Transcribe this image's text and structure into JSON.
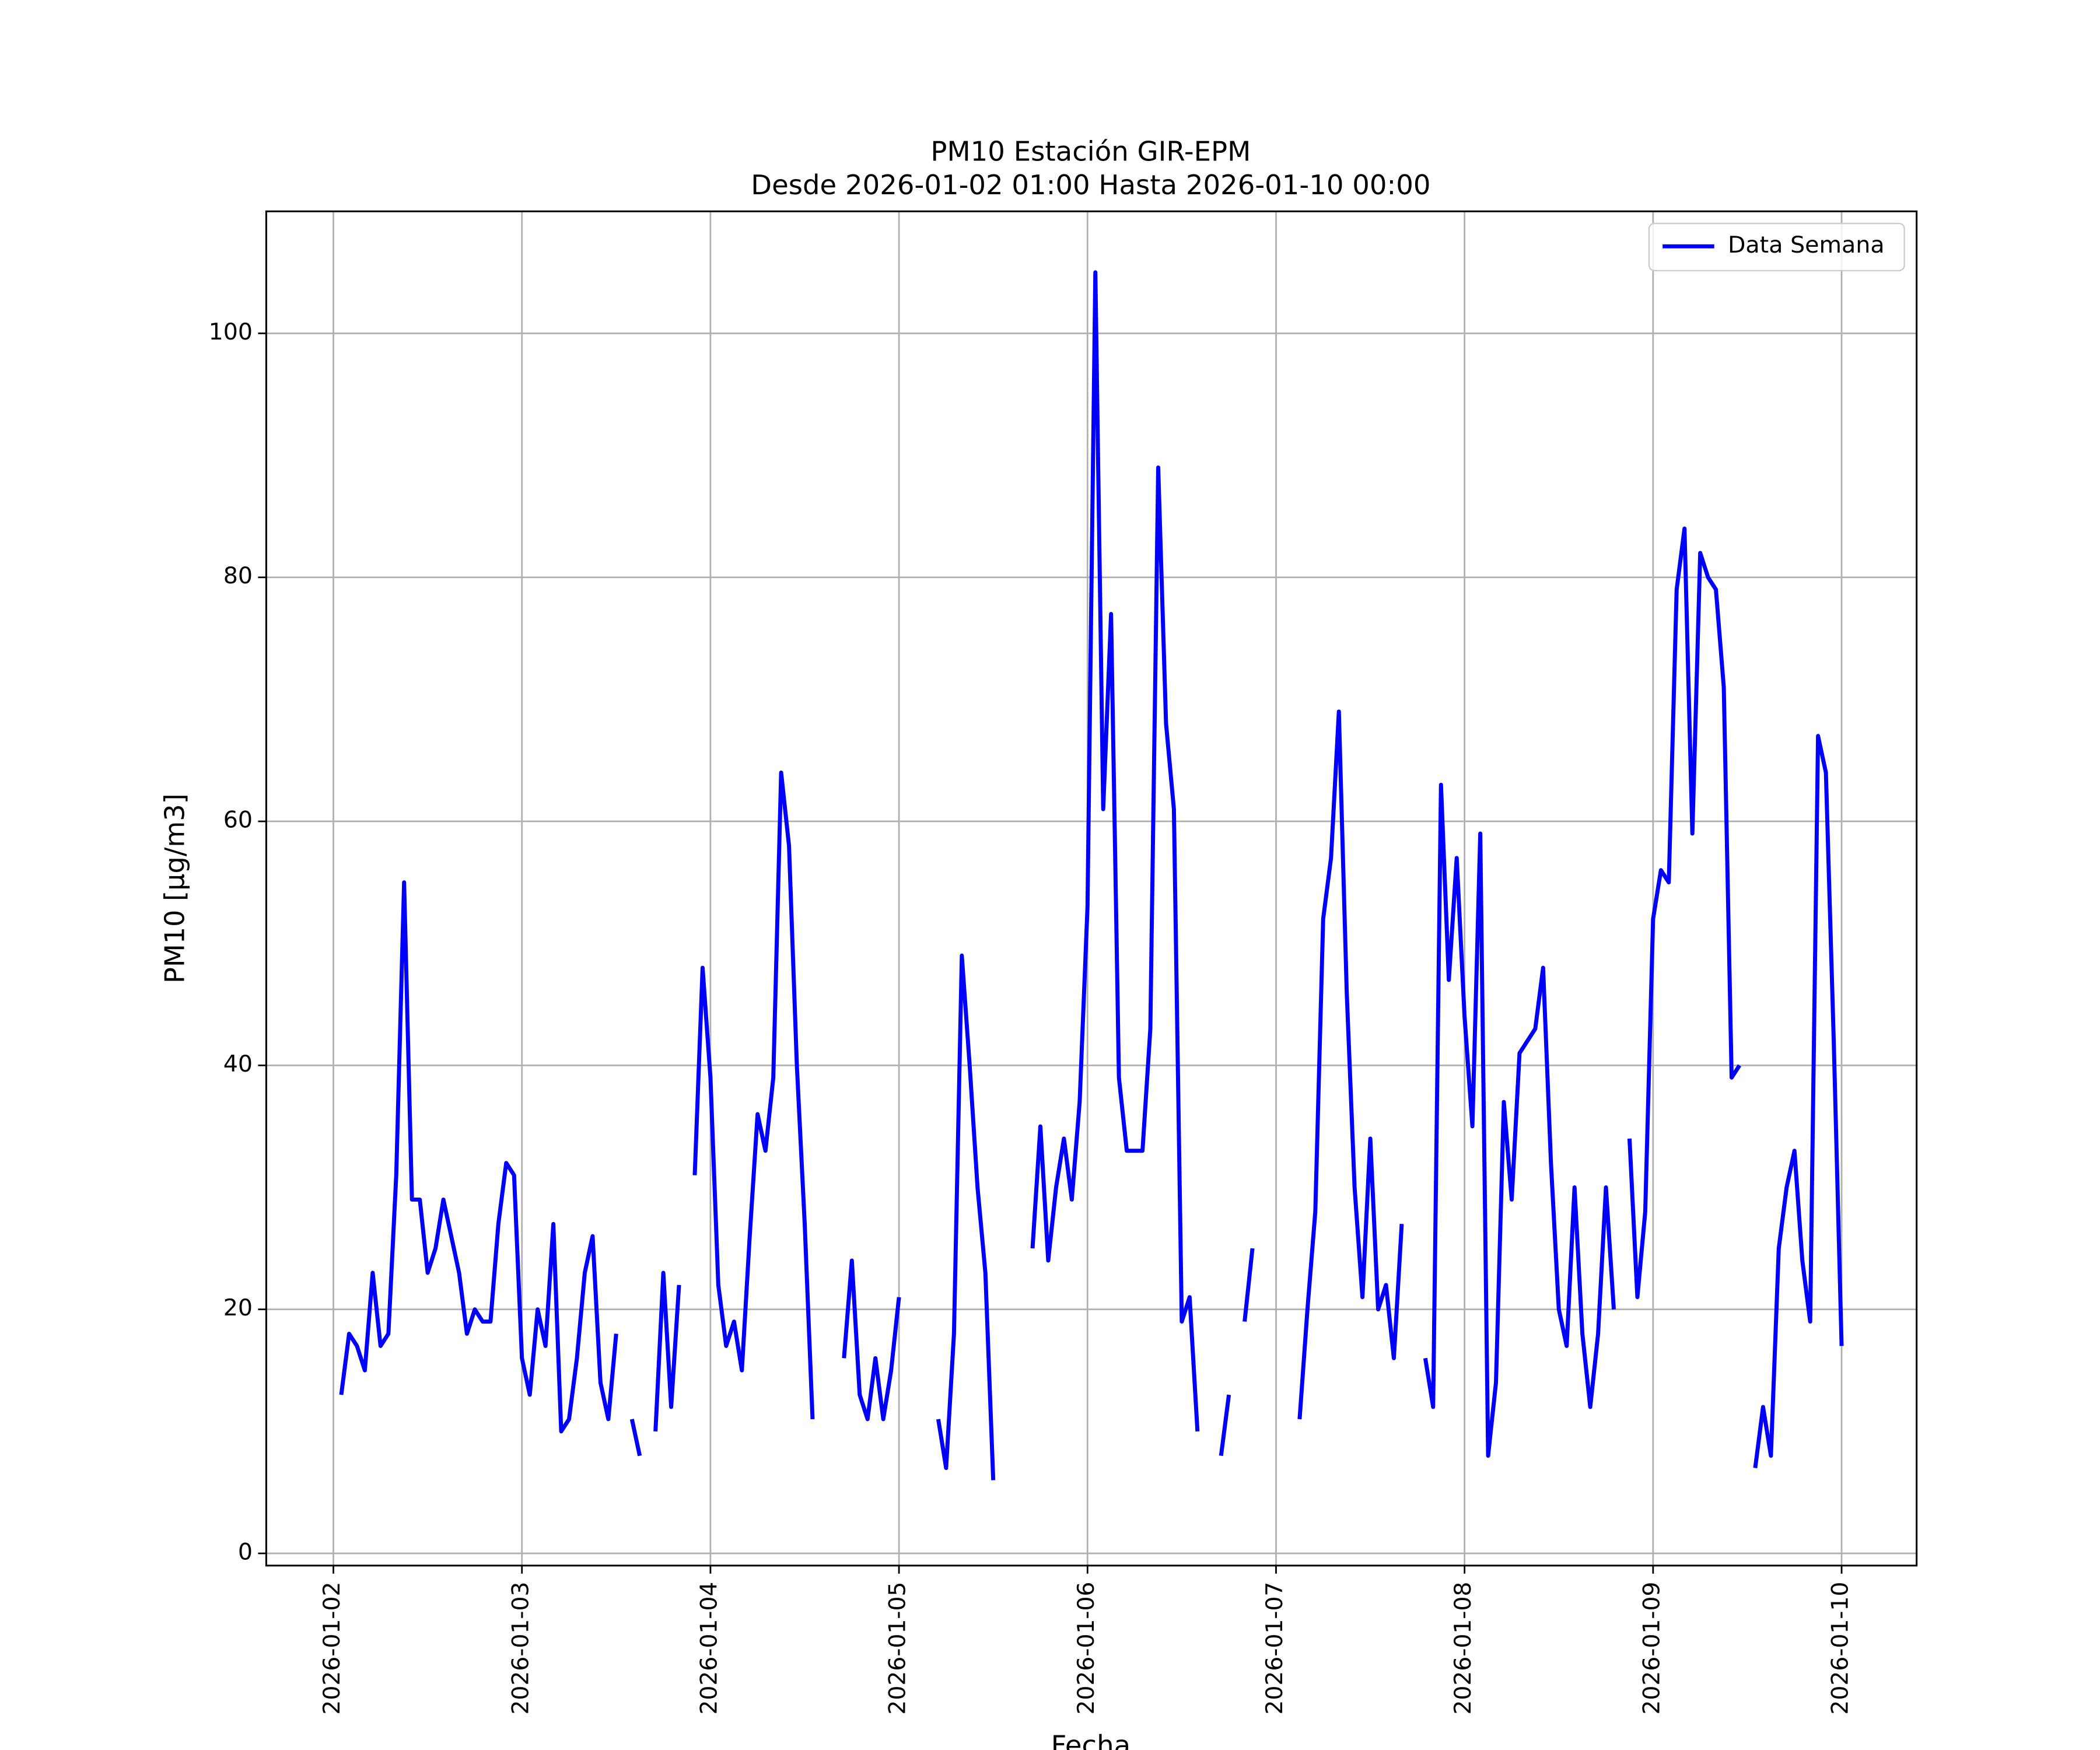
{
  "chart_data": {
    "type": "line",
    "title": "PM10 Estación GIR-EPM",
    "subtitle": "Desde 2026-01-02 01:00 Hasta 2026-01-10 00:00",
    "x_label": "Fecha",
    "y_label": "PM10 [μg/m3]",
    "legend": "upper right",
    "grid": true,
    "x": [
      "2026-01-02 01:00",
      "2026-01-02 02:00",
      "2026-01-02 03:00",
      "2026-01-02 04:00",
      "2026-01-02 05:00",
      "2026-01-02 06:00",
      "2026-01-02 07:00",
      "2026-01-02 08:00",
      "2026-01-02 09:00",
      "2026-01-02 10:00",
      "2026-01-02 11:00",
      "2026-01-02 12:00",
      "2026-01-02 13:00",
      "2026-01-02 14:00",
      "2026-01-02 15:00",
      "2026-01-02 16:00",
      "2026-01-02 17:00",
      "2026-01-02 18:00",
      "2026-01-02 19:00",
      "2026-01-02 20:00",
      "2026-01-02 21:00",
      "2026-01-02 22:00",
      "2026-01-02 23:00",
      "2026-01-03 00:00",
      "2026-01-03 01:00",
      "2026-01-03 02:00",
      "2026-01-03 03:00",
      "2026-01-03 04:00",
      "2026-01-03 05:00",
      "2026-01-03 06:00",
      "2026-01-03 07:00",
      "2026-01-03 08:00",
      "2026-01-03 09:00",
      "2026-01-03 10:00",
      "2026-01-03 11:00",
      "2026-01-03 12:00",
      "2026-01-03 13:00",
      "2026-01-03 14:00",
      "2026-01-03 15:00",
      "2026-01-03 16:00",
      "2026-01-03 17:00",
      "2026-01-03 18:00",
      "2026-01-03 19:00",
      "2026-01-03 20:00",
      "2026-01-03 21:00",
      "2026-01-03 22:00",
      "2026-01-03 23:00",
      "2026-01-04 00:00",
      "2026-01-04 01:00",
      "2026-01-04 02:00",
      "2026-01-04 03:00",
      "2026-01-04 04:00",
      "2026-01-04 05:00",
      "2026-01-04 06:00",
      "2026-01-04 07:00",
      "2026-01-04 08:00",
      "2026-01-04 09:00",
      "2026-01-04 10:00",
      "2026-01-04 11:00",
      "2026-01-04 12:00",
      "2026-01-04 13:00",
      "2026-01-04 14:00",
      "2026-01-04 15:00",
      "2026-01-04 16:00",
      "2026-01-04 17:00",
      "2026-01-04 18:00",
      "2026-01-04 19:00",
      "2026-01-04 20:00",
      "2026-01-04 21:00",
      "2026-01-04 22:00",
      "2026-01-04 23:00",
      "2026-01-05 00:00",
      "2026-01-05 01:00",
      "2026-01-05 02:00",
      "2026-01-05 03:00",
      "2026-01-05 04:00",
      "2026-01-05 05:00",
      "2026-01-05 06:00",
      "2026-01-05 07:00",
      "2026-01-05 08:00",
      "2026-01-05 09:00",
      "2026-01-05 10:00",
      "2026-01-05 11:00",
      "2026-01-05 12:00",
      "2026-01-05 13:00",
      "2026-01-05 14:00",
      "2026-01-05 15:00",
      "2026-01-05 16:00",
      "2026-01-05 17:00",
      "2026-01-05 18:00",
      "2026-01-05 19:00",
      "2026-01-05 20:00",
      "2026-01-05 21:00",
      "2026-01-05 22:00",
      "2026-01-05 23:00",
      "2026-01-06 00:00",
      "2026-01-06 01:00",
      "2026-01-06 02:00",
      "2026-01-06 03:00",
      "2026-01-06 04:00",
      "2026-01-06 05:00",
      "2026-01-06 06:00",
      "2026-01-06 07:00",
      "2026-01-06 08:00",
      "2026-01-06 09:00",
      "2026-01-06 10:00",
      "2026-01-06 11:00",
      "2026-01-06 12:00",
      "2026-01-06 13:00",
      "2026-01-06 14:00",
      "2026-01-06 15:00",
      "2026-01-06 16:00",
      "2026-01-06 17:00",
      "2026-01-06 18:00",
      "2026-01-06 19:00",
      "2026-01-06 20:00",
      "2026-01-06 21:00",
      "2026-01-06 22:00",
      "2026-01-06 23:00",
      "2026-01-07 00:00",
      "2026-01-07 01:00",
      "2026-01-07 02:00",
      "2026-01-07 03:00",
      "2026-01-07 04:00",
      "2026-01-07 05:00",
      "2026-01-07 06:00",
      "2026-01-07 07:00",
      "2026-01-07 08:00",
      "2026-01-07 09:00",
      "2026-01-07 10:00",
      "2026-01-07 11:00",
      "2026-01-07 12:00",
      "2026-01-07 13:00",
      "2026-01-07 14:00",
      "2026-01-07 15:00",
      "2026-01-07 16:00",
      "2026-01-07 17:00",
      "2026-01-07 18:00",
      "2026-01-07 19:00",
      "2026-01-07 20:00",
      "2026-01-07 21:00",
      "2026-01-07 22:00",
      "2026-01-07 23:00",
      "2026-01-08 00:00",
      "2026-01-08 01:00",
      "2026-01-08 02:00",
      "2026-01-08 03:00",
      "2026-01-08 04:00",
      "2026-01-08 05:00",
      "2026-01-08 06:00",
      "2026-01-08 07:00",
      "2026-01-08 08:00",
      "2026-01-08 09:00",
      "2026-01-08 10:00",
      "2026-01-08 11:00",
      "2026-01-08 12:00",
      "2026-01-08 13:00",
      "2026-01-08 14:00",
      "2026-01-08 15:00",
      "2026-01-08 16:00",
      "2026-01-08 17:00",
      "2026-01-08 18:00",
      "2026-01-08 19:00",
      "2026-01-08 20:00",
      "2026-01-08 21:00",
      "2026-01-08 22:00",
      "2026-01-08 23:00",
      "2026-01-09 00:00",
      "2026-01-09 01:00",
      "2026-01-09 02:00",
      "2026-01-09 03:00",
      "2026-01-09 04:00",
      "2026-01-09 05:00",
      "2026-01-09 06:00",
      "2026-01-09 07:00",
      "2026-01-09 08:00",
      "2026-01-09 09:00",
      "2026-01-09 10:00",
      "2026-01-09 11:00",
      "2026-01-09 12:00",
      "2026-01-09 13:00",
      "2026-01-09 14:00",
      "2026-01-09 15:00",
      "2026-01-09 16:00",
      "2026-01-09 17:00",
      "2026-01-09 18:00",
      "2026-01-09 19:00",
      "2026-01-09 20:00",
      "2026-01-09 21:00",
      "2026-01-09 22:00",
      "2026-01-09 23:00",
      "2026-01-10 00:00"
    ],
    "series": [
      {
        "name": "Data Semana",
        "color": "#0000ff",
        "values": [
          13,
          18,
          17,
          15,
          23,
          17,
          18,
          31,
          55,
          29,
          29,
          23,
          25,
          29,
          26,
          23,
          18,
          20,
          19,
          19,
          27,
          32,
          31,
          16,
          13,
          20,
          17,
          27,
          10,
          11,
          16,
          23,
          26,
          14,
          11,
          18,
          null,
          11,
          8,
          null,
          10,
          23,
          12,
          22,
          null,
          31,
          48,
          39,
          22,
          17,
          19,
          15,
          26,
          36,
          33,
          39,
          64,
          58,
          40,
          27,
          11,
          null,
          null,
          null,
          16,
          24,
          13,
          11,
          16,
          11,
          15,
          21,
          null,
          null,
          null,
          null,
          11,
          7,
          18,
          49,
          40,
          30,
          23,
          6,
          null,
          null,
          null,
          null,
          25,
          35,
          24,
          30,
          34,
          29,
          37,
          53,
          105,
          61,
          77,
          39,
          33,
          33,
          33,
          43,
          89,
          68,
          61,
          19,
          21,
          10,
          null,
          null,
          8,
          13,
          null,
          19,
          25,
          null,
          null,
          null,
          null,
          null,
          11,
          20,
          28,
          52,
          57,
          69,
          46,
          30,
          21,
          34,
          20,
          22,
          16,
          27,
          null,
          null,
          16,
          12,
          63,
          47,
          57,
          44,
          35,
          59,
          8,
          14,
          37,
          29,
          41,
          42,
          43,
          48,
          32,
          20,
          17,
          30,
          18,
          12,
          18,
          30,
          20,
          null,
          34,
          21,
          28,
          52,
          56,
          55,
          79,
          84,
          59,
          82,
          80,
          79,
          71,
          39,
          40,
          null,
          7,
          12,
          8,
          25,
          30,
          33,
          24,
          19,
          67,
          64,
          42,
          17
        ]
      }
    ],
    "xlim": [
      "2026-01-01 15:27",
      "2026-01-10 09:33"
    ],
    "xticks": [
      "2026-01-02",
      "2026-01-03",
      "2026-01-04",
      "2026-01-05",
      "2026-01-06",
      "2026-01-07",
      "2026-01-08",
      "2026-01-09",
      "2026-01-10"
    ],
    "ylim": [
      -1,
      110
    ],
    "yticks": [
      0,
      20,
      40,
      60,
      80,
      100
    ]
  }
}
